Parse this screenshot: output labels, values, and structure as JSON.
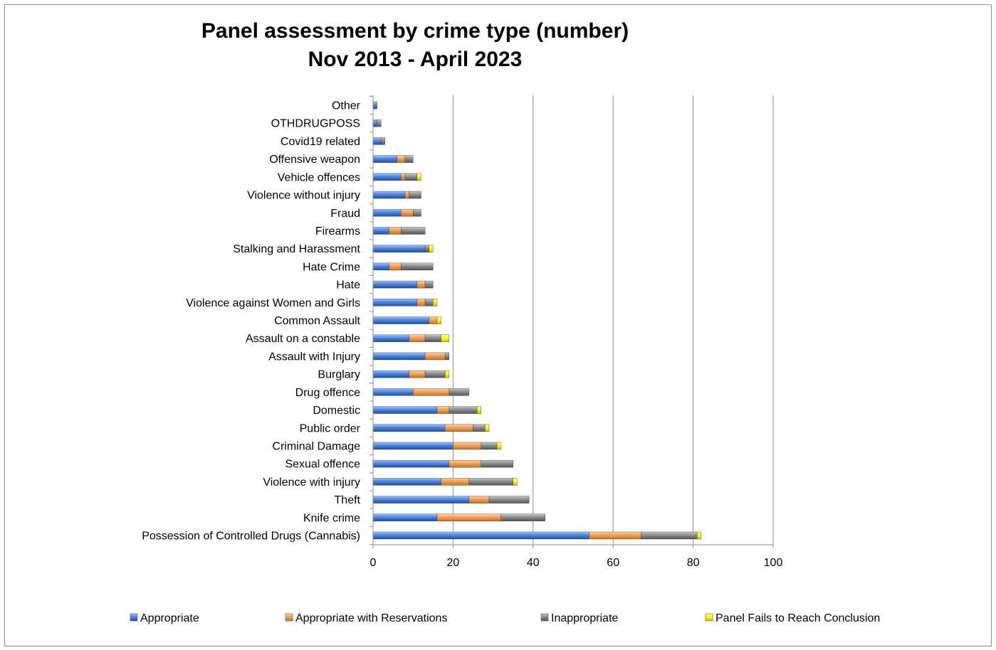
{
  "chart_data": {
    "type": "bar",
    "orientation": "horizontal",
    "stacked": true,
    "title": [
      "Panel assessment by crime type (number)",
      "Nov 2013 - April  2023"
    ],
    "xlabel": "",
    "ylabel": "",
    "xlim": [
      0,
      100
    ],
    "x_ticks": [
      "0",
      "20",
      "40",
      "60",
      "80",
      "100"
    ],
    "grid": "vertical major gridlines",
    "legend_position": "bottom",
    "categories": [
      "Other",
      "OTHDRUGPOSS",
      "Covid19 related",
      "Offensive weapon",
      "Vehicle offences",
      "Violence without injury",
      "Fraud",
      "Firearms",
      "Stalking and Harassment",
      "Hate Crime",
      "Hate",
      "Violence against Women and Girls",
      "Common Assault",
      "Assault on a constable",
      "Assault with Injury",
      "Burglary",
      "Drug offence",
      "Domestic",
      "Public order",
      "Criminal Damage",
      "Sexual offence",
      "Violence with injury",
      "Theft",
      "Knife crime",
      "Possession of Controlled Drugs (Cannabis)"
    ],
    "series": [
      {
        "name": "Appropriate",
        "color": "#4a86e8",
        "values": [
          1,
          1,
          2,
          6,
          7,
          8,
          7,
          4,
          13,
          4,
          11,
          11,
          14,
          9,
          13,
          9,
          10,
          16,
          18,
          20,
          19,
          17,
          24,
          16,
          54
        ]
      },
      {
        "name": "Appropriate with Reservations",
        "color": "#f4a156",
        "values": [
          0,
          0,
          0,
          2,
          1,
          1,
          3,
          3,
          0,
          3,
          2,
          2,
          2,
          4,
          5,
          4,
          9,
          3,
          7,
          7,
          8,
          7,
          5,
          16,
          13
        ]
      },
      {
        "name": "Inappropriate",
        "color": "#8c8c8c",
        "values": [
          0,
          1,
          1,
          2,
          3,
          3,
          2,
          6,
          1,
          8,
          2,
          2,
          0,
          4,
          1,
          5,
          5,
          7,
          3,
          4,
          8,
          11,
          10,
          11,
          14
        ]
      },
      {
        "name": "Panel Fails to Reach Conclusion",
        "color": "#ffff00",
        "values": [
          0,
          0,
          0,
          0,
          1,
          0,
          0,
          0,
          1,
          0,
          0,
          1,
          1,
          2,
          0,
          1,
          0,
          1,
          1,
          1,
          0,
          1,
          0,
          0,
          1
        ]
      }
    ]
  }
}
